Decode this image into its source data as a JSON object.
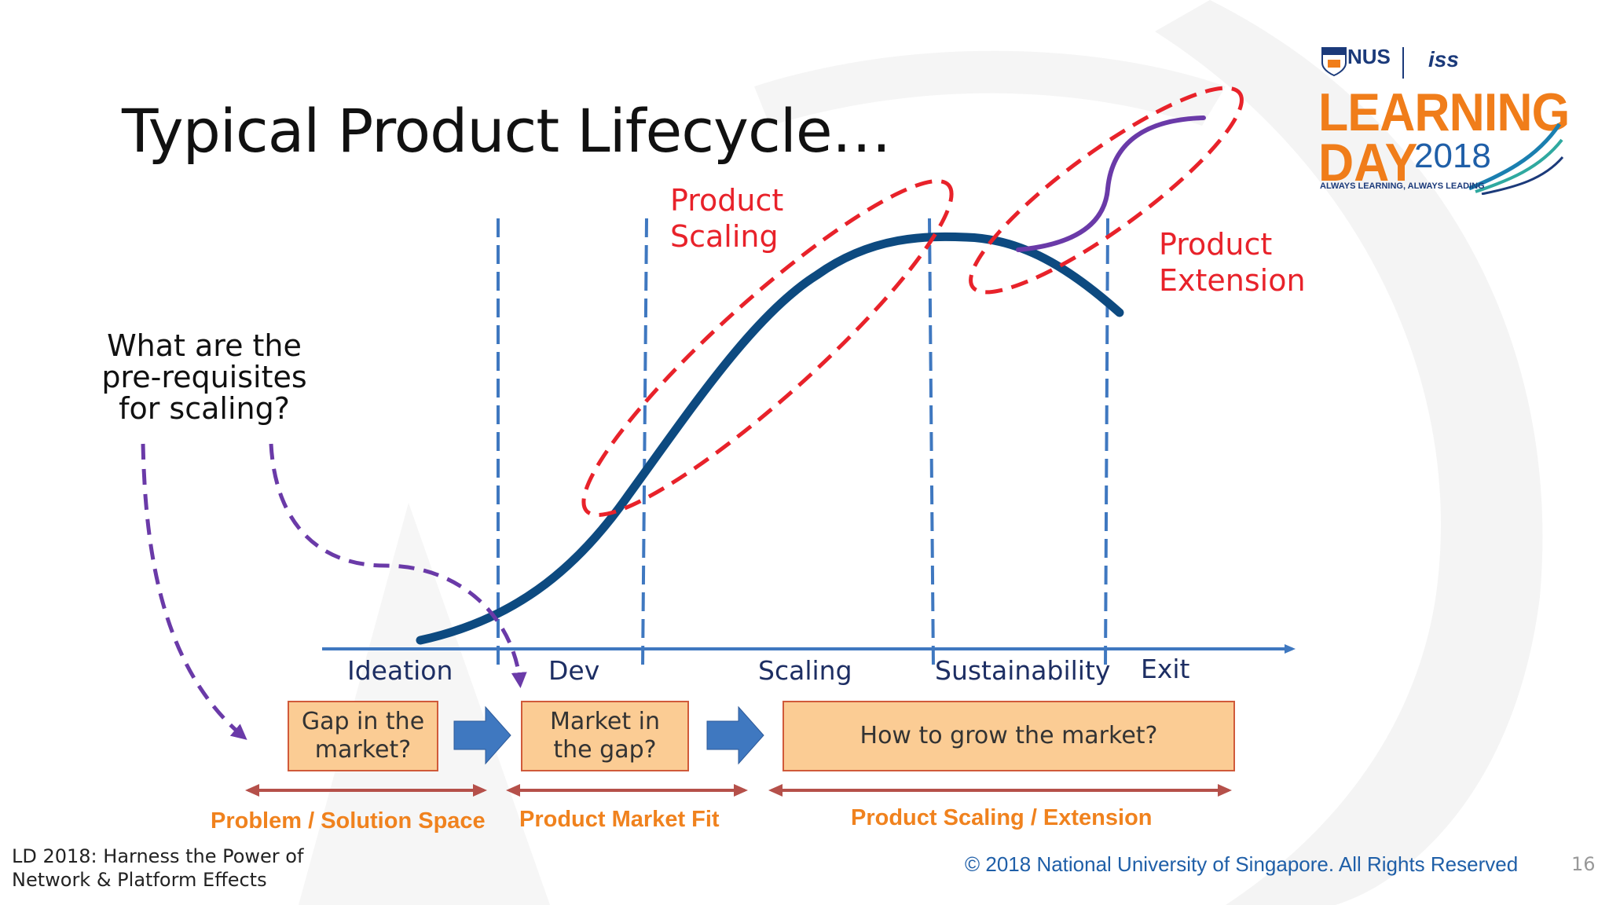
{
  "title": "Typical Product Lifecycle…",
  "question": "What are the pre-requisites for scaling?",
  "annotations": {
    "product_scaling": [
      "Product",
      "Scaling"
    ],
    "product_extension": [
      "Product",
      "Extension"
    ]
  },
  "stages": [
    "Ideation",
    "Dev",
    "Scaling",
    "Sustainability",
    "Exit"
  ],
  "boxes": {
    "gap": "Gap in the market?",
    "market": "Market in the gap?",
    "grow": "How to grow the market?"
  },
  "ranges": {
    "problem_solution": "Problem / Solution Space",
    "product_market_fit": "Product Market Fit",
    "scaling_extension": "Product Scaling / Extension"
  },
  "footer": "LD 2018: Harness the Power of Network & Platform Effects",
  "copyright": "© 2018 National University of Singapore. All Rights Reserved",
  "page_number": "16",
  "logo": {
    "nus": "NUS",
    "iss": "iss",
    "learning": "LEARNING",
    "day": "DAY",
    "year": "2018",
    "tagline": "ALWAYS LEARNING, ALWAYS LEADING"
  },
  "colors": {
    "curve": "#0d4a80",
    "dashed_divider": "#3f78c0",
    "highlight": "#e8222a",
    "extension_curve": "#6a3aa8",
    "question_arrows": "#6a3aa8",
    "box_fill": "#fbcc94",
    "range_text": "#f0821e",
    "range_arrow": "#b5504a",
    "flow_arrow": "#3f78c0"
  }
}
